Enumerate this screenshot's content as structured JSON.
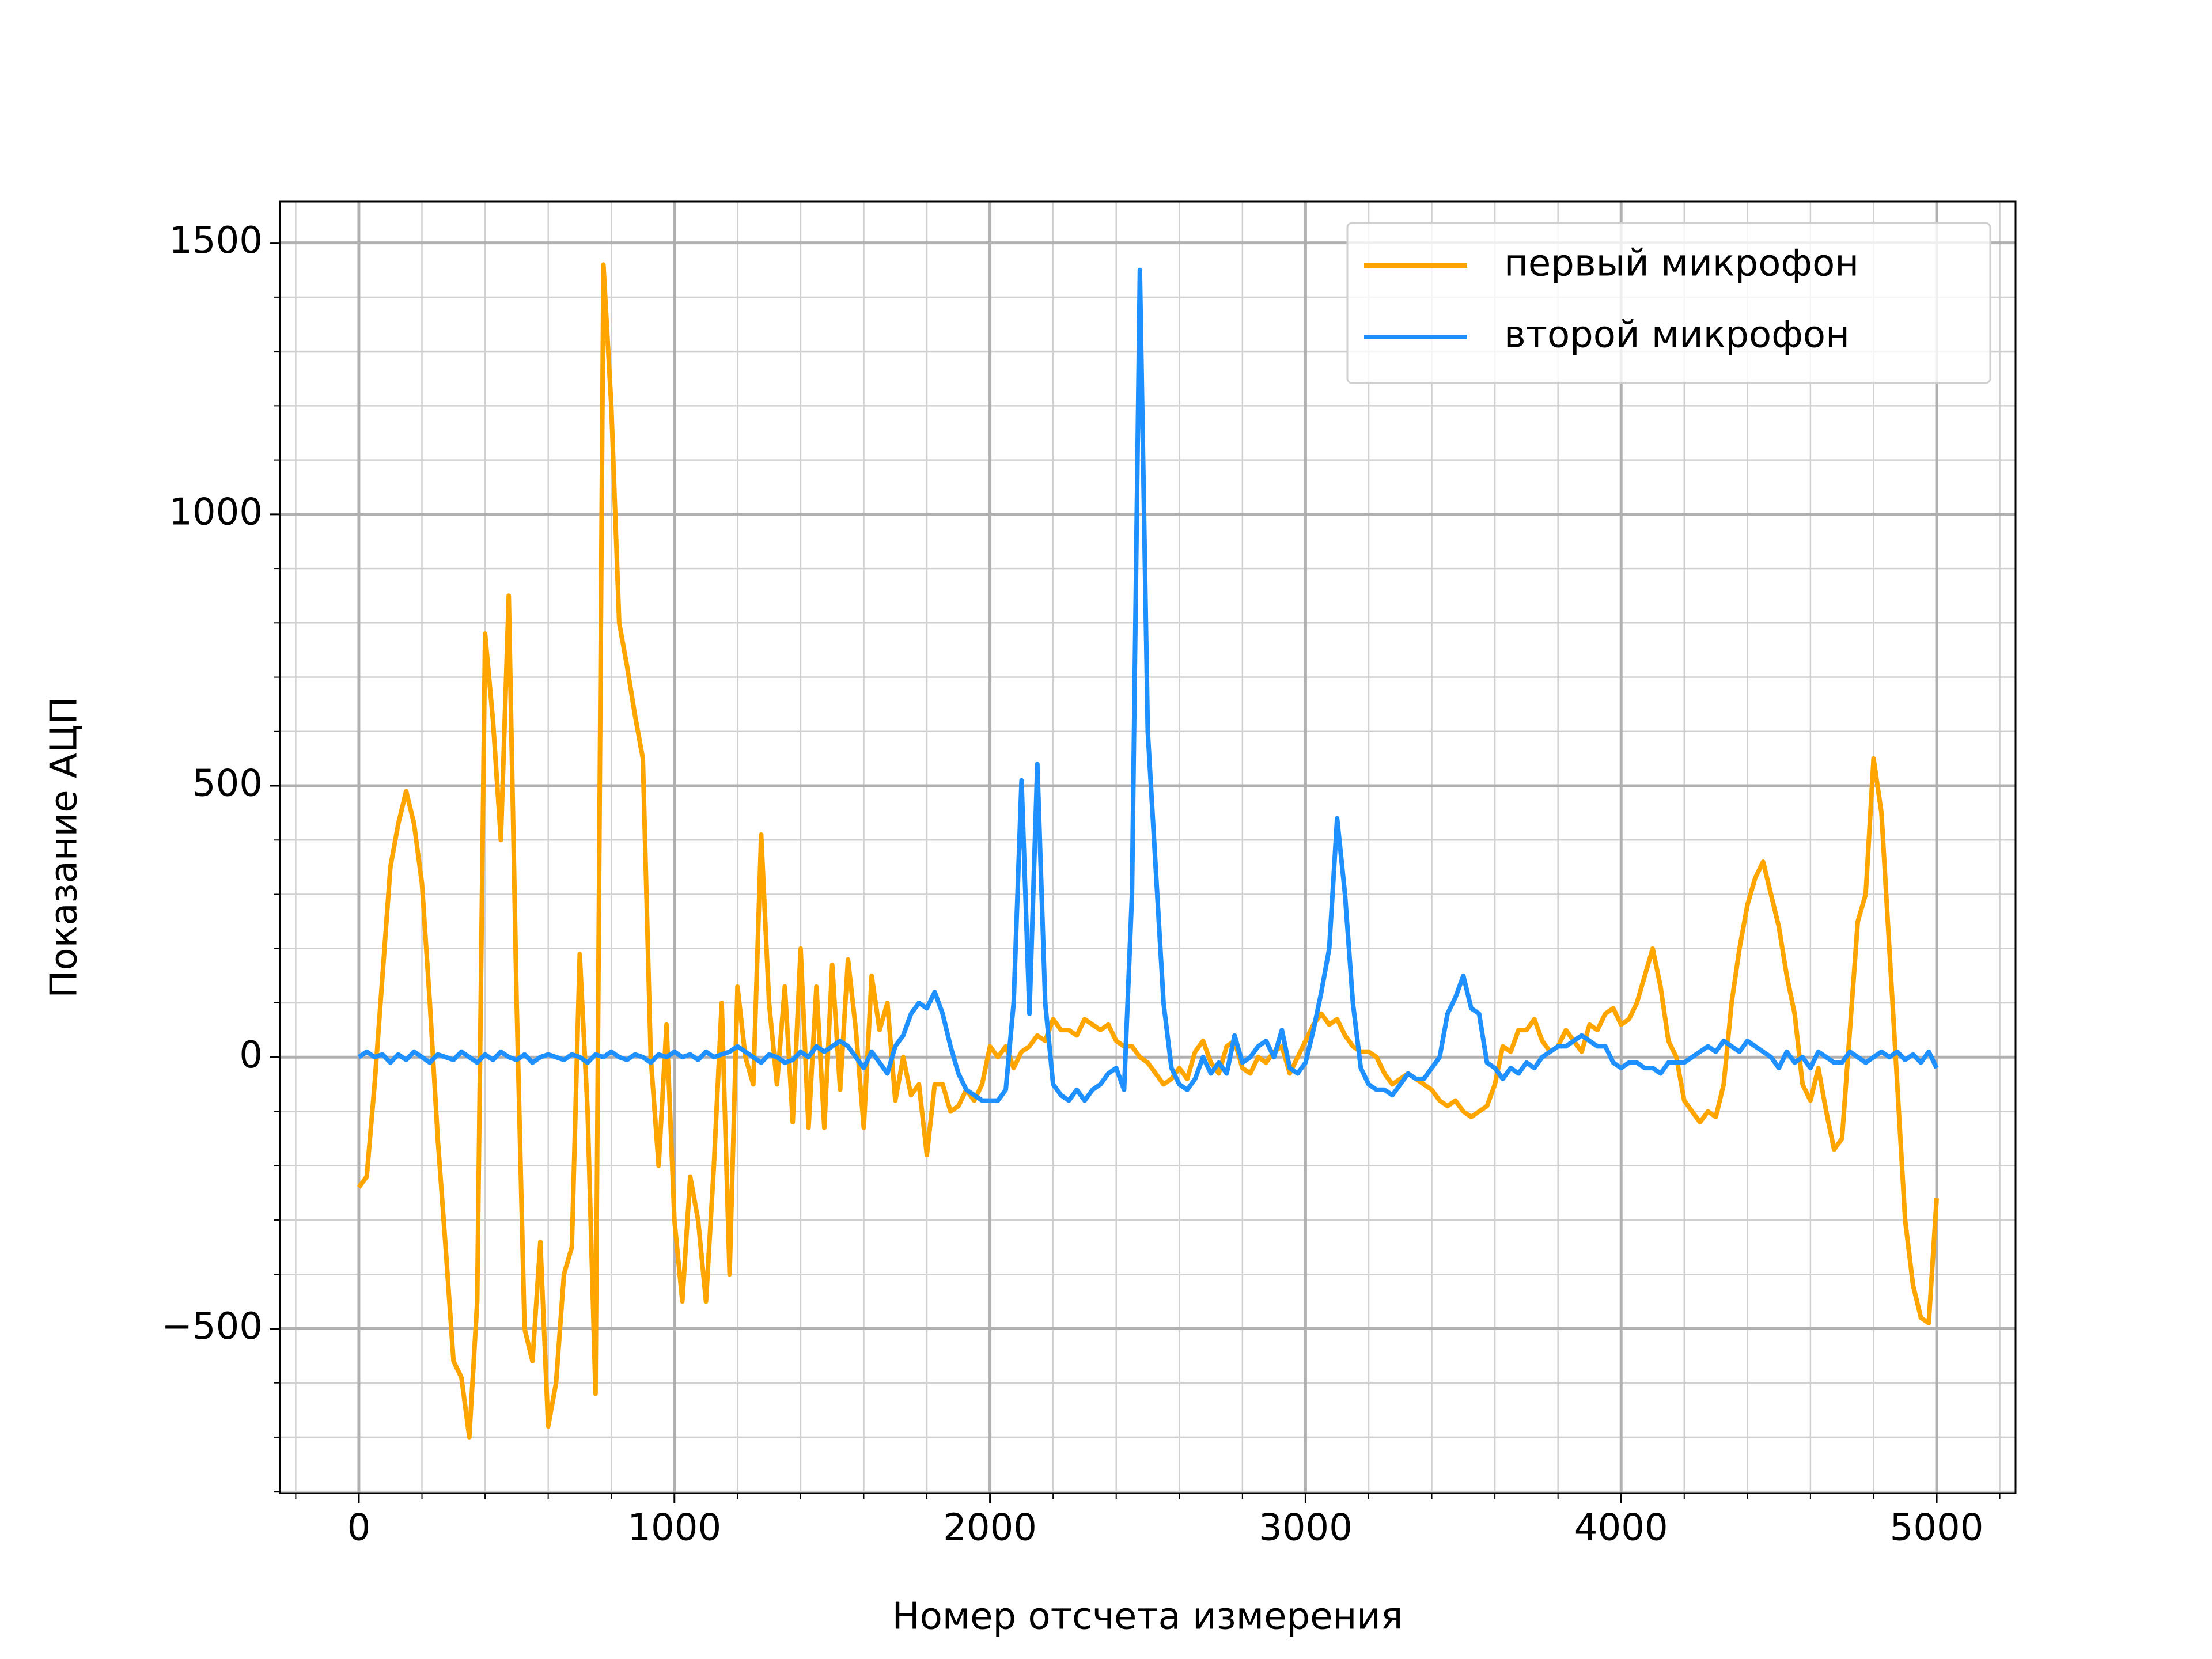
{
  "chart_data": {
    "type": "line",
    "xlabel": "Номер отсчета измерения",
    "ylabel": "Показание АЦП",
    "xlim": [
      -250,
      5250
    ],
    "ylim": [
      -803,
      1576
    ],
    "xticks": [
      0,
      1000,
      2000,
      3000,
      4000,
      5000
    ],
    "yticks": [
      {
        "value": -500,
        "label": "−500"
      },
      0,
      500,
      1000,
      1500
    ],
    "xminorticks": [
      -200,
      200,
      400,
      600,
      800,
      1200,
      1400,
      1600,
      1800,
      2200,
      2400,
      2600,
      2800,
      3200,
      3400,
      3600,
      3800,
      4200,
      4400,
      4600,
      4800,
      5200
    ],
    "yminorticks": [
      -800,
      -700,
      -600,
      -400,
      -300,
      -200,
      -100,
      100,
      200,
      300,
      400,
      600,
      700,
      800,
      900,
      1100,
      1200,
      1300,
      1400
    ],
    "grid": true,
    "legend": "upper right",
    "x": [
      0,
      25,
      50,
      75,
      100,
      125,
      150,
      175,
      200,
      225,
      250,
      275,
      300,
      325,
      350,
      375,
      400,
      425,
      450,
      475,
      500,
      525,
      550,
      575,
      600,
      625,
      650,
      675,
      700,
      725,
      750,
      775,
      800,
      825,
      850,
      875,
      900,
      925,
      950,
      975,
      1000,
      1025,
      1050,
      1075,
      1100,
      1125,
      1150,
      1175,
      1200,
      1225,
      1250,
      1275,
      1300,
      1325,
      1350,
      1375,
      1400,
      1425,
      1450,
      1475,
      1500,
      1525,
      1550,
      1575,
      1600,
      1625,
      1650,
      1675,
      1700,
      1725,
      1750,
      1775,
      1800,
      1825,
      1850,
      1875,
      1900,
      1925,
      1950,
      1975,
      2000,
      2025,
      2050,
      2075,
      2100,
      2125,
      2150,
      2175,
      2200,
      2225,
      2250,
      2275,
      2300,
      2325,
      2350,
      2375,
      2400,
      2425,
      2450,
      2475,
      2500,
      2525,
      2550,
      2575,
      2600,
      2625,
      2650,
      2675,
      2700,
      2725,
      2750,
      2775,
      2800,
      2825,
      2850,
      2875,
      2900,
      2925,
      2950,
      2975,
      3000,
      3025,
      3050,
      3075,
      3100,
      3125,
      3150,
      3175,
      3200,
      3225,
      3250,
      3275,
      3300,
      3325,
      3350,
      3375,
      3400,
      3425,
      3450,
      3475,
      3500,
      3525,
      3550,
      3575,
      3600,
      3625,
      3650,
      3675,
      3700,
      3725,
      3750,
      3775,
      3800,
      3825,
      3850,
      3875,
      3900,
      3925,
      3950,
      3975,
      4000,
      4025,
      4050,
      4075,
      4100,
      4125,
      4150,
      4175,
      4200,
      4225,
      4250,
      4275,
      4300,
      4325,
      4350,
      4375,
      4400,
      4425,
      4450,
      4475,
      4500,
      4525,
      4550,
      4575,
      4600,
      4625,
      4650,
      4675,
      4700,
      4725,
      4750,
      4775,
      4800,
      4825,
      4850,
      4875,
      4900,
      4925,
      4950,
      4975,
      5000
    ],
    "series": [
      {
        "name": "первый микрофон",
        "color": "#ffa500",
        "values": [
          -240,
          -220,
          -50,
          150,
          350,
          430,
          490,
          430,
          320,
          100,
          -150,
          -350,
          -560,
          -590,
          -700,
          -450,
          780,
          620,
          400,
          850,
          100,
          -500,
          -560,
          -340,
          -680,
          -600,
          -400,
          -350,
          190,
          -100,
          -620,
          1460,
          1200,
          800,
          720,
          630,
          550,
          0,
          -200,
          60,
          -300,
          -450,
          -220,
          -300,
          -450,
          -200,
          100,
          -400,
          130,
          0,
          -50,
          410,
          100,
          -50,
          130,
          -120,
          200,
          -130,
          130,
          -130,
          170,
          -60,
          180,
          50,
          -130,
          150,
          50,
          100,
          -80,
          0,
          -70,
          -50,
          -180,
          -50,
          -50,
          -100,
          -90,
          -60,
          -80,
          -50,
          20,
          0,
          20,
          -20,
          10,
          20,
          40,
          30,
          70,
          50,
          50,
          40,
          70,
          60,
          50,
          60,
          30,
          20,
          20,
          0,
          -10,
          -30,
          -50,
          -40,
          -20,
          -40,
          10,
          30,
          -10,
          -30,
          20,
          30,
          -20,
          -30,
          0,
          -10,
          10,
          20,
          -30,
          0,
          30,
          60,
          80,
          60,
          70,
          40,
          20,
          10,
          10,
          0,
          -30,
          -50,
          -40,
          -30,
          -40,
          -50,
          -60,
          -80,
          -90,
          -80,
          -100,
          -110,
          -100,
          -90,
          -50,
          20,
          10,
          50,
          50,
          70,
          30,
          10,
          20,
          50,
          30,
          10,
          60,
          50,
          80,
          90,
          60,
          70,
          100,
          150,
          200,
          130,
          30,
          0,
          -80,
          -100,
          -120,
          -100,
          -110,
          -50,
          100,
          200,
          280,
          330,
          360,
          300,
          240,
          150,
          80,
          -50,
          -80,
          -20,
          -100,
          -170,
          -150,
          50,
          250,
          300,
          550,
          450,
          200,
          -50,
          -300,
          -420,
          -480,
          -490,
          -260
        ]
      },
      {
        "name": "второй микрофон",
        "color": "#1e90ff",
        "values": [
          0,
          10,
          0,
          5,
          -10,
          5,
          -5,
          10,
          0,
          -10,
          5,
          0,
          -5,
          10,
          0,
          -10,
          5,
          -5,
          10,
          0,
          -5,
          5,
          -10,
          0,
          5,
          0,
          -5,
          5,
          0,
          -10,
          5,
          0,
          10,
          0,
          -5,
          5,
          0,
          -10,
          5,
          0,
          10,
          0,
          5,
          -5,
          10,
          0,
          5,
          10,
          20,
          10,
          0,
          -10,
          5,
          0,
          -10,
          -5,
          10,
          0,
          20,
          10,
          20,
          30,
          20,
          0,
          -20,
          10,
          -10,
          -30,
          20,
          40,
          80,
          100,
          90,
          120,
          80,
          20,
          -30,
          -60,
          -70,
          -80,
          -80,
          -80,
          -60,
          100,
          510,
          80,
          540,
          100,
          -50,
          -70,
          -80,
          -60,
          -80,
          -60,
          -50,
          -30,
          -20,
          -60,
          300,
          1450,
          600,
          350,
          100,
          -20,
          -50,
          -60,
          -40,
          0,
          -30,
          -10,
          -30,
          40,
          -10,
          0,
          20,
          30,
          0,
          50,
          -20,
          -30,
          -10,
          50,
          120,
          200,
          440,
          300,
          100,
          -20,
          -50,
          -60,
          -60,
          -70,
          -50,
          -30,
          -40,
          -40,
          -20,
          0,
          80,
          110,
          150,
          90,
          80,
          -10,
          -20,
          -40,
          -20,
          -30,
          -10,
          -20,
          0,
          10,
          20,
          20,
          30,
          40,
          30,
          20,
          20,
          -10,
          -20,
          -10,
          -10,
          -20,
          -20,
          -30,
          -10,
          -10,
          -10,
          0,
          10,
          20,
          10,
          30,
          20,
          10,
          30,
          20,
          10,
          0,
          -20,
          10,
          -10,
          0,
          -20,
          10,
          0,
          -10,
          -10,
          10,
          0,
          -10,
          0,
          10,
          0,
          10,
          -5,
          5,
          -10,
          10,
          -20
        ]
      }
    ]
  }
}
